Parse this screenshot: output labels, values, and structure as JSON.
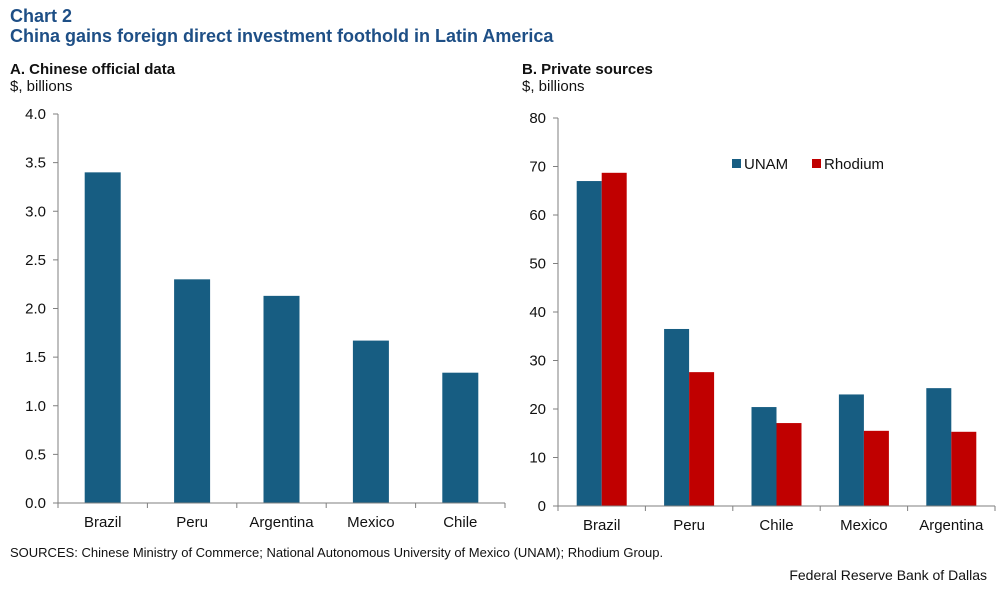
{
  "header": {
    "label": "Chart 2",
    "title": "China gains foreign direct investment foothold in Latin America"
  },
  "colors": {
    "unam": "#175d82",
    "rhodium": "#c00000",
    "axis": "#7f7f7f",
    "heading": "#1e4f86"
  },
  "chart_data": [
    {
      "type": "bar",
      "title": "A. Chinese official data",
      "unit": "$, billions",
      "categories": [
        "Brazil",
        "Peru",
        "Argentina",
        "Mexico",
        "Chile"
      ],
      "series": [
        {
          "values": [
            3.4,
            2.3,
            2.13,
            1.67,
            1.34
          ]
        }
      ],
      "ylim": [
        0,
        4.0
      ],
      "yticks": [
        "0.0",
        "0.5",
        "1.0",
        "1.5",
        "2.0",
        "2.5",
        "3.0",
        "3.5",
        "4.0"
      ],
      "grid": false
    },
    {
      "type": "bar",
      "title": "B. Private sources",
      "unit": "$, billions",
      "categories": [
        "Brazil",
        "Peru",
        "Chile",
        "Mexico",
        "Argentina"
      ],
      "series": [
        {
          "name": "UNAM",
          "values": [
            67.0,
            36.5,
            20.4,
            23.0,
            24.3
          ]
        },
        {
          "name": "Rhodium",
          "values": [
            68.7,
            27.6,
            17.1,
            15.5,
            15.3
          ]
        }
      ],
      "ylim": [
        0,
        80
      ],
      "yticks": [
        "0",
        "10",
        "20",
        "30",
        "40",
        "50",
        "60",
        "70",
        "80"
      ],
      "legend_position": "top-right",
      "grid": false
    }
  ],
  "footer": {
    "sources": "SOURCES: Chinese Ministry of Commerce; National Autonomous University of Mexico (UNAM);  Rhodium Group.",
    "credit": "Federal Reserve Bank of Dallas"
  }
}
